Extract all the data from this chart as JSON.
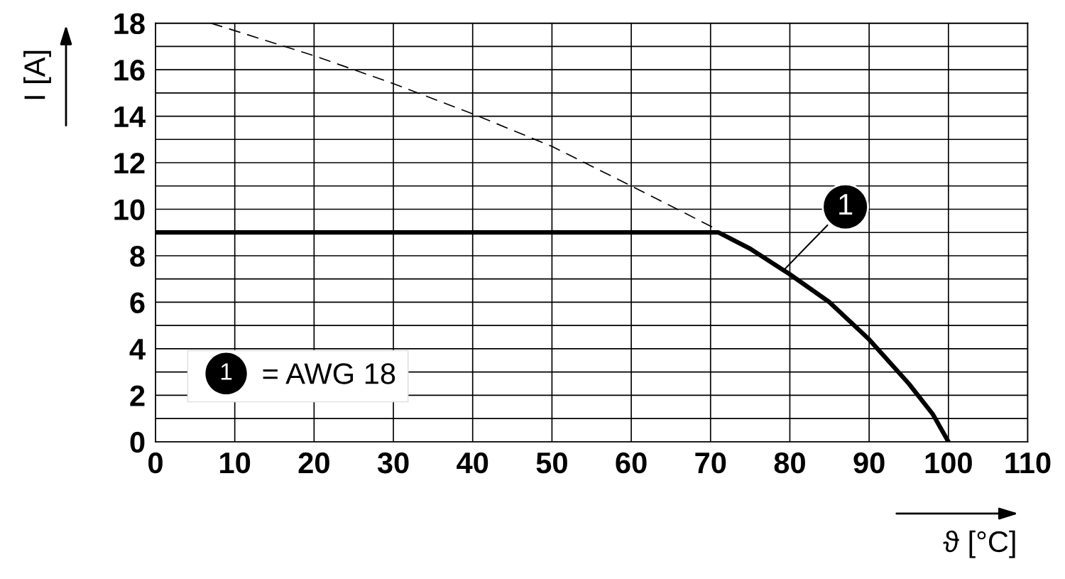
{
  "chart_data": {
    "type": "line",
    "xlabel": "ϑ [°C]",
    "ylabel": "I [A]",
    "xlim": [
      0,
      110
    ],
    "xticks": [
      0,
      10,
      20,
      30,
      40,
      50,
      60,
      70,
      80,
      90,
      100,
      110
    ],
    "ylim": [
      0,
      18
    ],
    "yticks": [
      0,
      {
        "value": 1,
        "label": null
      },
      2,
      {
        "value": 3,
        "label": null
      },
      4,
      {
        "value": 5,
        "label": null
      },
      6,
      {
        "value": 7,
        "label": null
      },
      8,
      {
        "value": 9,
        "label": null
      },
      10,
      {
        "value": 11,
        "label": null
      },
      12,
      {
        "value": 13,
        "label": null
      },
      14,
      {
        "value": 15,
        "label": null
      },
      16,
      {
        "value": 17,
        "label": null
      },
      18
    ],
    "grid": true,
    "legend": "bottom left",
    "series": [
      {
        "name": "= AWG 18",
        "color": "#000000",
        "line_style": "solid",
        "x": [
          0,
          71,
          75,
          80,
          85,
          90,
          95,
          98,
          100
        ],
        "values": [
          9,
          9,
          8.3,
          7.2,
          6.0,
          4.4,
          2.5,
          1.2,
          0
        ]
      },
      {
        "color": "#000000",
        "line_style": "dashed",
        "x": [
          7,
          20,
          30,
          40,
          50,
          60,
          71
        ],
        "values": [
          18,
          16.6,
          15.4,
          14.1,
          12.7,
          11.0,
          9.1
        ]
      }
    ],
    "annotations": [
      {
        "text": "1",
        "x": 79,
        "y": 7.3
      }
    ]
  }
}
